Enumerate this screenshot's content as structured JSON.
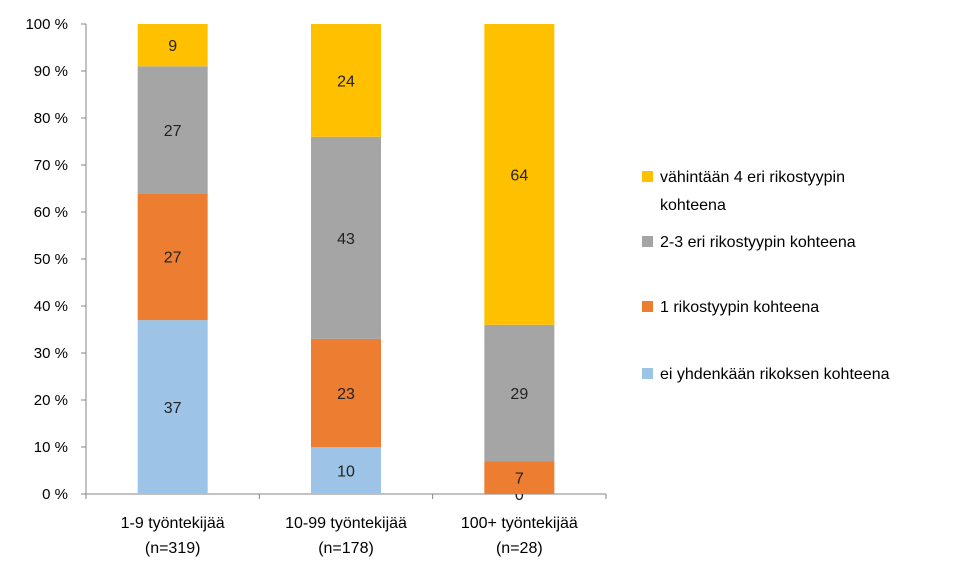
{
  "chart_data": {
    "type": "bar",
    "stacked": true,
    "percent": true,
    "categories": [
      [
        "1-9 työntekijää",
        "(n=319)"
      ],
      [
        "10-99 työntekijää",
        "(n=178)"
      ],
      [
        "100+ työntekijää",
        "(n=28)"
      ]
    ],
    "series": [
      {
        "name": "ei yhdenkään rikoksen kohteena",
        "color": "#9DC3E6",
        "values": [
          37,
          10,
          0
        ],
        "labels": [
          "37",
          "10",
          "0"
        ]
      },
      {
        "name": "1 rikostyypin kohteena",
        "color": "#ED7D31",
        "values": [
          27,
          23,
          7
        ],
        "labels": [
          "27",
          "23",
          "7"
        ]
      },
      {
        "name": "2-3 eri rikostyypin kohteena",
        "color": "#A5A5A5",
        "values": [
          27,
          43,
          29
        ],
        "labels": [
          "27",
          "43",
          "29"
        ]
      },
      {
        "name": [
          "vähintään 4 eri rikostyypin",
          "kohteena"
        ],
        "color": "#FFC000",
        "values": [
          9,
          24,
          64
        ],
        "labels": [
          "9",
          "24",
          "64"
        ]
      }
    ],
    "yticks": [
      "0 %",
      "10 %",
      "20 %",
      "30 %",
      "40 %",
      "50 %",
      "60 %",
      "70 %",
      "80 %",
      "90 %",
      "100 %"
    ],
    "ylim": [
      0,
      100
    ],
    "legend_position": "right",
    "grid": false
  }
}
